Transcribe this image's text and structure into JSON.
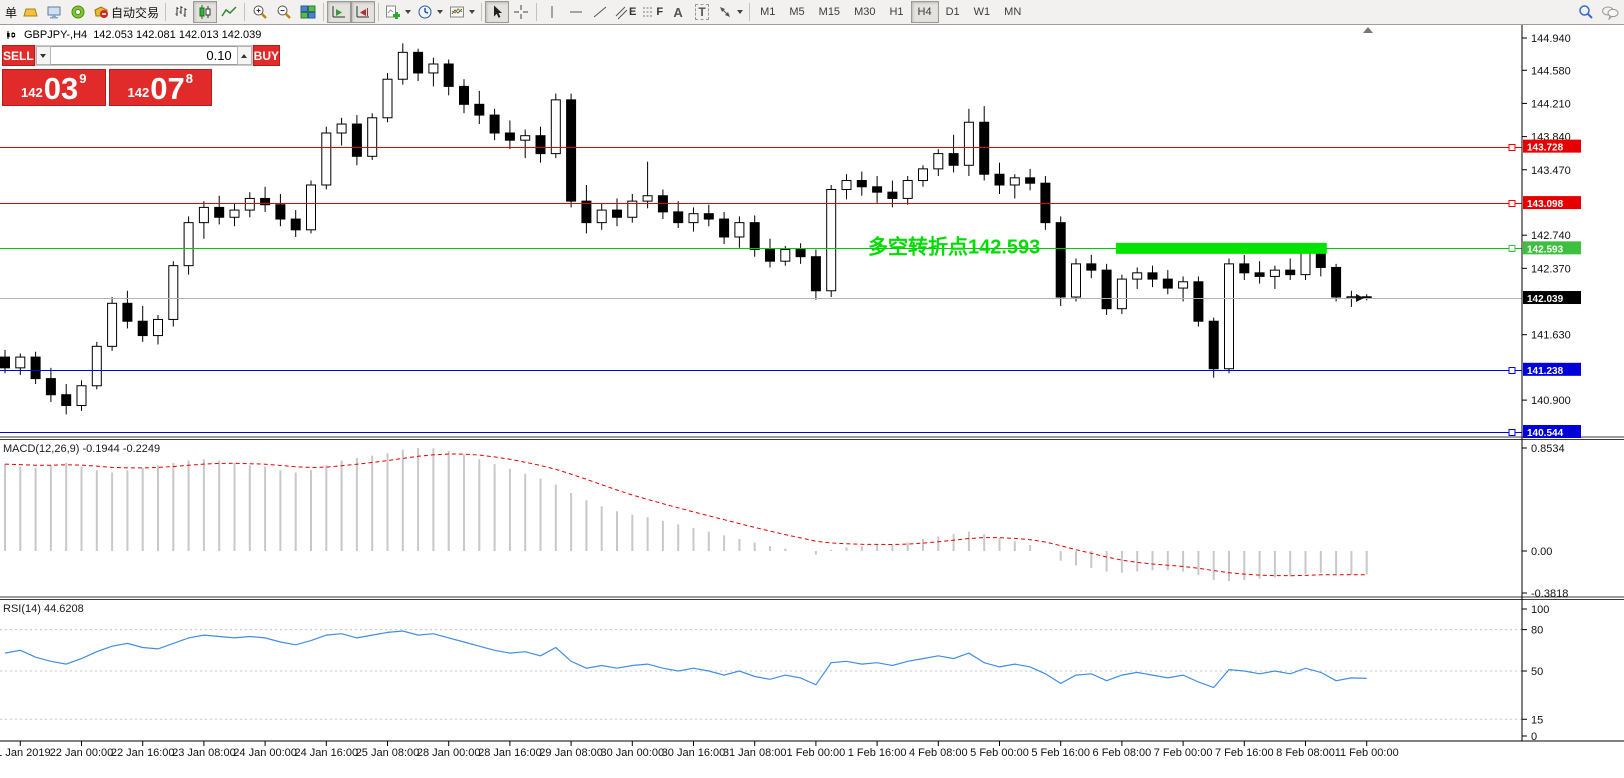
{
  "toolbar": {
    "new_order_partial": "单",
    "autotrading_label": "自动交易",
    "glyphs": {
      "channel": "E",
      "fibo": "F",
      "text_tool": "A",
      "label_tool": "T"
    },
    "timeframes": [
      "M1",
      "M5",
      "M15",
      "M30",
      "H1",
      "H4",
      "D1",
      "W1",
      "MN"
    ],
    "active_timeframe": "H4"
  },
  "symbol_bar": {
    "title": "GBPJPY-,H4",
    "ohlc": "142.053 142.081 142.013 142.039"
  },
  "trade_panel": {
    "sell_label": "SELL",
    "buy_label": "BUY",
    "volume": "0.10",
    "sell_price_main": "142",
    "sell_price_big": "03",
    "sell_price_sup": "9",
    "buy_price_main": "142",
    "buy_price_big": "07",
    "buy_price_sup": "8"
  },
  "chart_data": {
    "type": "candlestick",
    "symbol": "GBPJPY-",
    "period": "H4",
    "ohlc_header": {
      "open": "142.053",
      "high": "142.081",
      "low": "142.013",
      "close": "142.039"
    },
    "bull_color": "#ffffff",
    "bear_color": "#000000",
    "x_axis_labels": [
      "21 Jan 2019",
      "22 Jan 00:00",
      "22 Jan 16:00",
      "23 Jan 08:00",
      "24 Jan 00:00",
      "24 Jan 16:00",
      "25 Jan 08:00",
      "28 Jan 00:00",
      "28 Jan 16:00",
      "29 Jan 08:00",
      "30 Jan 00:00",
      "30 Jan 16:00",
      "31 Jan 08:00",
      "1 Feb 00:00",
      "1 Feb 16:00",
      "4 Feb 08:00",
      "5 Feb 00:00",
      "5 Feb 16:00",
      "6 Feb 08:00",
      "7 Feb 00:00",
      "7 Feb 16:00",
      "8 Feb 08:00",
      "11 Feb 00:00"
    ],
    "y_axis_ticks": [
      "144.940",
      "144.580",
      "144.210",
      "143.840",
      "143.470",
      "142.740",
      "142.370",
      "141.630",
      "140.900"
    ],
    "levels": [
      {
        "price": 143.728,
        "label": "143.728",
        "color": "#e60000",
        "badge": "#e60000",
        "handle": true
      },
      {
        "price": 143.098,
        "label": "143.098",
        "color": "#e60000",
        "badge": "#e60000",
        "handle": true
      },
      {
        "price": 142.593,
        "label": "142.593",
        "color": "#00c800",
        "badge": "#3fbf3f",
        "handle": true
      },
      {
        "price": 142.039,
        "label": "142.039",
        "color": "#b4b4b4",
        "badge": "#000000",
        "handle": false
      },
      {
        "price": 141.238,
        "label": "141.238",
        "color": "#0000e0",
        "badge": "#0000d8",
        "handle": true
      },
      {
        "price": 140.544,
        "label": "140.544",
        "color": "#0000e0",
        "badge": "#0000d8",
        "handle": true
      }
    ],
    "annotation": {
      "text": "多空转折点142.593",
      "color": "#00dc00"
    },
    "highlight": {
      "from_index": 73,
      "to_index": 86,
      "price": 142.593,
      "color": "#00e400"
    },
    "candles": [
      [
        141.38,
        141.46,
        141.2,
        141.26
      ],
      [
        141.26,
        141.42,
        141.18,
        141.38
      ],
      [
        141.38,
        141.44,
        141.08,
        141.14
      ],
      [
        141.14,
        141.26,
        140.88,
        140.96
      ],
      [
        140.96,
        141.08,
        140.74,
        140.84
      ],
      [
        140.84,
        141.12,
        140.78,
        141.06
      ],
      [
        141.06,
        141.55,
        141.02,
        141.5
      ],
      [
        141.5,
        142.05,
        141.45,
        141.98
      ],
      [
        141.98,
        142.12,
        141.7,
        141.78
      ],
      [
        141.78,
        141.95,
        141.55,
        141.62
      ],
      [
        141.62,
        141.85,
        141.52,
        141.8
      ],
      [
        141.8,
        142.45,
        141.72,
        142.4
      ],
      [
        142.4,
        142.95,
        142.3,
        142.88
      ],
      [
        142.88,
        143.12,
        142.7,
        143.05
      ],
      [
        143.05,
        143.18,
        142.86,
        142.94
      ],
      [
        142.94,
        143.1,
        142.84,
        143.02
      ],
      [
        143.02,
        143.22,
        142.94,
        143.15
      ],
      [
        143.15,
        143.28,
        143.0,
        143.08
      ],
      [
        143.08,
        143.2,
        142.84,
        142.92
      ],
      [
        142.92,
        143.02,
        142.72,
        142.8
      ],
      [
        142.8,
        143.35,
        142.76,
        143.3
      ],
      [
        143.3,
        143.95,
        143.25,
        143.88
      ],
      [
        143.88,
        144.05,
        143.74,
        143.98
      ],
      [
        143.98,
        144.08,
        143.52,
        143.62
      ],
      [
        143.62,
        144.1,
        143.58,
        144.05
      ],
      [
        144.05,
        144.55,
        144.0,
        144.48
      ],
      [
        144.48,
        144.88,
        144.42,
        144.78
      ],
      [
        144.78,
        144.82,
        144.46,
        144.55
      ],
      [
        144.55,
        144.72,
        144.4,
        144.65
      ],
      [
        144.65,
        144.7,
        144.3,
        144.4
      ],
      [
        144.4,
        144.48,
        144.1,
        144.2
      ],
      [
        144.2,
        144.35,
        143.98,
        144.08
      ],
      [
        144.08,
        144.15,
        143.8,
        143.88
      ],
      [
        143.88,
        144.02,
        143.7,
        143.8
      ],
      [
        143.8,
        143.92,
        143.6,
        143.85
      ],
      [
        143.85,
        143.95,
        143.55,
        143.65
      ],
      [
        143.65,
        144.32,
        143.6,
        144.25
      ],
      [
        144.25,
        144.32,
        143.05,
        143.12
      ],
      [
        143.12,
        143.3,
        142.76,
        142.88
      ],
      [
        142.88,
        143.1,
        142.8,
        143.02
      ],
      [
        143.02,
        143.15,
        142.84,
        142.94
      ],
      [
        142.94,
        143.2,
        142.88,
        143.12
      ],
      [
        143.12,
        143.56,
        143.04,
        143.18
      ],
      [
        143.18,
        143.25,
        142.92,
        143.0
      ],
      [
        143.0,
        143.12,
        142.82,
        142.88
      ],
      [
        142.88,
        143.05,
        142.78,
        142.98
      ],
      [
        142.98,
        143.08,
        142.84,
        142.92
      ],
      [
        142.92,
        143.0,
        142.64,
        142.72
      ],
      [
        142.72,
        142.95,
        142.6,
        142.88
      ],
      [
        142.88,
        142.96,
        142.5,
        142.58
      ],
      [
        142.58,
        142.7,
        142.38,
        142.45
      ],
      [
        142.45,
        142.62,
        142.4,
        142.58
      ],
      [
        142.58,
        142.65,
        142.42,
        142.5
      ],
      [
        142.5,
        142.58,
        142.02,
        142.12
      ],
      [
        142.12,
        143.3,
        142.05,
        143.25
      ],
      [
        143.25,
        143.42,
        143.14,
        143.35
      ],
      [
        143.35,
        143.45,
        143.18,
        143.28
      ],
      [
        143.28,
        143.4,
        143.1,
        143.22
      ],
      [
        143.22,
        143.35,
        143.05,
        143.15
      ],
      [
        143.15,
        143.4,
        143.08,
        143.35
      ],
      [
        143.35,
        143.52,
        143.28,
        143.48
      ],
      [
        143.48,
        143.7,
        143.4,
        143.65
      ],
      [
        143.65,
        143.86,
        143.44,
        143.52
      ],
      [
        143.52,
        144.15,
        143.4,
        144.0
      ],
      [
        144.0,
        144.18,
        143.35,
        143.42
      ],
      [
        143.42,
        143.55,
        143.2,
        143.3
      ],
      [
        143.3,
        143.42,
        143.15,
        143.38
      ],
      [
        143.38,
        143.48,
        143.24,
        143.32
      ],
      [
        143.32,
        143.4,
        142.8,
        142.88
      ],
      [
        142.88,
        142.95,
        141.95,
        142.05
      ],
      [
        142.05,
        142.48,
        142.0,
        142.42
      ],
      [
        142.42,
        142.52,
        142.26,
        142.35
      ],
      [
        142.35,
        142.42,
        141.85,
        141.92
      ],
      [
        141.92,
        142.3,
        141.86,
        142.25
      ],
      [
        142.25,
        142.38,
        142.14,
        142.32
      ],
      [
        142.32,
        142.4,
        142.16,
        142.25
      ],
      [
        142.25,
        142.35,
        142.08,
        142.15
      ],
      [
        142.15,
        142.28,
        142.0,
        142.22
      ],
      [
        142.22,
        142.28,
        141.72,
        141.78
      ],
      [
        141.78,
        141.82,
        141.15,
        141.25
      ],
      [
        141.25,
        142.48,
        141.2,
        142.42
      ],
      [
        142.42,
        142.52,
        142.24,
        142.32
      ],
      [
        142.32,
        142.45,
        142.2,
        142.28
      ],
      [
        142.28,
        142.4,
        142.14,
        142.35
      ],
      [
        142.35,
        142.48,
        142.24,
        142.3
      ],
      [
        142.3,
        142.62,
        142.24,
        142.55
      ],
      [
        142.55,
        142.6,
        142.28,
        142.38
      ],
      [
        142.38,
        142.42,
        142.0,
        142.05
      ],
      [
        142.05,
        142.12,
        141.94,
        142.053
      ],
      [
        142.053,
        142.081,
        142.013,
        142.039
      ]
    ],
    "macd": {
      "label": "MACD(12,26,9) -0.1944 -0.2249",
      "scale": [
        "0.8534",
        "0.00",
        "-0.3818"
      ],
      "histogram_color": "#c8c8c8",
      "signal_color": "#e60000",
      "values": [
        0.72,
        0.7,
        0.69,
        0.71,
        0.73,
        0.7,
        0.67,
        0.65,
        0.67,
        0.69,
        0.71,
        0.73,
        0.75,
        0.76,
        0.75,
        0.73,
        0.71,
        0.7,
        0.67,
        0.65,
        0.67,
        0.71,
        0.75,
        0.77,
        0.79,
        0.81,
        0.84,
        0.8534,
        0.85,
        0.83,
        0.8,
        0.76,
        0.72,
        0.68,
        0.64,
        0.6,
        0.55,
        0.48,
        0.42,
        0.37,
        0.33,
        0.3,
        0.28,
        0.25,
        0.22,
        0.19,
        0.16,
        0.13,
        0.1,
        0.07,
        0.04,
        0.02,
        0.0,
        -0.03,
        0.01,
        0.03,
        0.04,
        0.05,
        0.05,
        0.07,
        0.1,
        0.12,
        0.14,
        0.16,
        0.14,
        0.11,
        0.08,
        0.05,
        0.0,
        -0.08,
        -0.12,
        -0.14,
        -0.17,
        -0.18,
        -0.17,
        -0.16,
        -0.16,
        -0.17,
        -0.2,
        -0.24,
        -0.25,
        -0.24,
        -0.23,
        -0.22,
        -0.21,
        -0.19,
        -0.18,
        -0.19,
        -0.2,
        -0.1944
      ]
    },
    "rsi": {
      "label": "RSI(14) 44.6208",
      "scale": [
        "100",
        "80",
        "50",
        "15",
        "0"
      ],
      "level_lines": [
        80,
        50,
        15
      ],
      "line_color": "#418ee0",
      "values": [
        63,
        65,
        60,
        57,
        55,
        59,
        64,
        68,
        70,
        67,
        66,
        70,
        74,
        76,
        75,
        74,
        75,
        74,
        71,
        69,
        72,
        76,
        77,
        74,
        76,
        78,
        79,
        76,
        77,
        74,
        71,
        68,
        65,
        63,
        64,
        61,
        67,
        57,
        52,
        54,
        52,
        54,
        55,
        52,
        50,
        52,
        50,
        47,
        50,
        46,
        44,
        47,
        45,
        40,
        56,
        57,
        55,
        56,
        54,
        57,
        59,
        61,
        59,
        63,
        56,
        53,
        55,
        53,
        48,
        41,
        47,
        48,
        43,
        47,
        49,
        47,
        45,
        47,
        42,
        38,
        51,
        50,
        48,
        50,
        48,
        52,
        49,
        43,
        45,
        44.62
      ]
    }
  }
}
